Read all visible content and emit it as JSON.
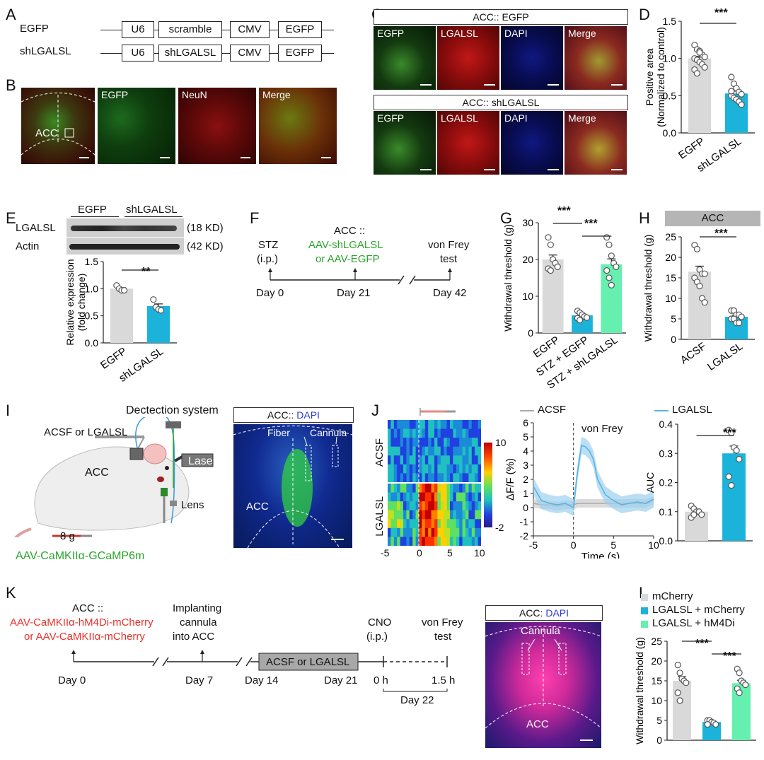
{
  "panels": {
    "A": {
      "letter": "A",
      "rows": [
        {
          "name": "EGFP",
          "parts": [
            "U6",
            "scramble",
            "CMV",
            "EGFP"
          ]
        },
        {
          "name": "shLGALSL",
          "parts": [
            "U6",
            "shLGALSL",
            "CMV",
            "EGFP"
          ]
        }
      ]
    },
    "B": {
      "letter": "B",
      "acc_label": "ACC",
      "image_labels": [
        "EGFP",
        "NeuN",
        "Merge"
      ]
    },
    "C": {
      "letter": "C",
      "rows": [
        {
          "title": "ACC:: EGFP",
          "labels": [
            "EGFP",
            "LGALSL",
            "DAPI",
            "Merge"
          ]
        },
        {
          "title": "ACC:: shLGALSL",
          "labels": [
            "EGFP",
            "LGALSL",
            "DAPI",
            "Merge"
          ]
        }
      ]
    },
    "D": {
      "letter": "D",
      "sig": "***"
    },
    "E": {
      "letter": "E",
      "groups": [
        "EGFP",
        "shLGALSL"
      ],
      "bands": [
        {
          "name": "LGALSL",
          "size": "(18 KD)"
        },
        {
          "name": "Actin",
          "size": "(42 KD)"
        }
      ],
      "sig": "**"
    },
    "F": {
      "letter": "F",
      "events": [
        {
          "top": "STZ",
          "sub": "(i.p.)",
          "day": "Day 0"
        },
        {
          "top": "ACC ::",
          "green1": "AAV-shLGALSL",
          "green2": "or AAV-EGFP",
          "day": "Day 21"
        },
        {
          "top": "von Frey",
          "sub": "test",
          "day": "Day 42"
        }
      ]
    },
    "G": {
      "letter": "G",
      "sig1": "***",
      "sig2": "***"
    },
    "H": {
      "letter": "H",
      "header": "ACC",
      "sig": "***"
    },
    "I": {
      "letter": "I",
      "detection": "Dectection system",
      "injection": "ACSF or LGALSL",
      "acc": "ACC",
      "laser": "Laser",
      "lens": "Lens",
      "weight": "8 g",
      "virus": "AAV-CaMKIIα-GCaMP6m",
      "image_title_prefix": "ACC:: ",
      "image_title_dapi": "DAPI",
      "fiber": "Fiber",
      "cannula": "Cannula",
      "acc_img": "ACC"
    },
    "J": {
      "letter": "J",
      "row_labels": [
        "ACSF",
        "LGALSL"
      ],
      "colorbar_ticks": [
        "10",
        "-2"
      ],
      "heat_xticks": [
        "-5",
        "0",
        "5",
        "10"
      ],
      "legend": [
        "ACSF",
        "LGALSL"
      ],
      "trace_annotation": "von Frey",
      "sig": "***"
    },
    "K": {
      "letter": "K",
      "acc": "ACC ::",
      "virus1": "AAV-CaMKIIα-hM4Di-mCherry",
      "virus2": "or AAV-CaMKIIα-mCherry",
      "implant1": "Implanting",
      "implant2": "cannula",
      "implant3": "into ACC",
      "treatment": "ACSF or LGALSL",
      "cno": "CNO",
      "cno_sub": "(i.p.)",
      "vf1": "von Frey",
      "vf2": "test",
      "days": [
        "Day 0",
        "Day 7",
        "Day 14",
        "Day 21",
        "0 h",
        "1.5 h"
      ],
      "day22": "Day 22",
      "image_title_prefix": "ACC: ",
      "image_title_dapi": "DAPI",
      "cannula": "Cannula",
      "acc_img": "ACC"
    },
    "L": {
      "letter": "L",
      "legend": [
        "mCherry",
        "LGALSL + mCherry",
        "LGALSL + hM4Di"
      ],
      "sig1": "***",
      "sig2": "***"
    }
  },
  "colors": {
    "gray": "#d9d9d9",
    "cyan": "#1bb3d9",
    "mint": "#66f0b0",
    "red": "#e8312a",
    "green": "#2aa52a",
    "blue": "#2a3ad9"
  },
  "chart_data": [
    {
      "id": "D",
      "type": "bar",
      "categories": [
        "EGFP",
        "shLGALSL"
      ],
      "values": [
        1.0,
        0.53
      ],
      "ylabel": "Positive area (Normalized to control)",
      "ylim": [
        0,
        1.5
      ],
      "yticks": [
        "0.0",
        "0.5",
        "1.0",
        "1.5"
      ],
      "points": [
        [
          1.18,
          1.12,
          1.1,
          1.05,
          1.02,
          1.0,
          0.98,
          0.95,
          0.92,
          0.88,
          0.85,
          0.8,
          1.08
        ],
        [
          0.75,
          0.66,
          0.6,
          0.55,
          0.52,
          0.5,
          0.47,
          0.45,
          0.42,
          0.38,
          0.56
        ]
      ]
    },
    {
      "id": "E",
      "type": "bar",
      "categories": [
        "EGFP",
        "shLGALSL"
      ],
      "values": [
        1.0,
        0.68
      ],
      "ylabel": "Relative expression (fold change)",
      "ylim": [
        0,
        1.5
      ],
      "yticks": [
        "0.0",
        "0.5",
        "1.0",
        "1.5"
      ],
      "points": [
        [
          1.06,
          1.0,
          0.97,
          0.97
        ],
        [
          0.8,
          0.66,
          0.62,
          0.6
        ]
      ]
    },
    {
      "id": "G",
      "type": "bar",
      "categories": [
        "EGFP",
        "STZ + EGFP",
        "STZ + shLGALSL"
      ],
      "values": [
        20,
        4.8,
        18.7
      ],
      "ylabel": "Withdrawal threshold (g)",
      "ylim": [
        0,
        30
      ],
      "yticks": [
        "0",
        "10",
        "20",
        "30"
      ],
      "points": [
        [
          26,
          24,
          20,
          19,
          18,
          17.5,
          17
        ],
        [
          6,
          5.5,
          5,
          4.5,
          4.2,
          4,
          3.5
        ],
        [
          26,
          24,
          21,
          19,
          18,
          17,
          15,
          13
        ]
      ]
    },
    {
      "id": "H",
      "type": "bar",
      "categories": [
        "ACSF",
        "LGALSL"
      ],
      "values": [
        16.5,
        5.5
      ],
      "ylabel": "Withdrawal threshold (g)",
      "ylim": [
        0,
        25
      ],
      "yticks": [
        "0",
        "5",
        "10",
        "15",
        "20",
        "25"
      ],
      "points": [
        [
          23,
          22,
          17,
          16,
          16,
          15,
          14,
          13,
          10,
          9
        ],
        [
          7,
          7,
          6,
          6,
          5.5,
          5,
          5,
          4,
          4
        ]
      ]
    },
    {
      "id": "J-trace",
      "type": "line",
      "x": [
        -5,
        -4,
        -3,
        -2,
        -1,
        0,
        0.5,
        1,
        1.5,
        2,
        2.5,
        3,
        4,
        5,
        6,
        7,
        8,
        9,
        10
      ],
      "series": [
        {
          "name": "ACSF",
          "values": [
            0.3,
            0.2,
            0.2,
            0.1,
            0.2,
            0.2,
            0.3,
            0.3,
            0.3,
            0.3,
            0.3,
            0.3,
            0.3,
            0.3,
            0.3,
            0.3,
            0.3,
            0.3,
            0.5
          ]
        },
        {
          "name": "LGALSL",
          "values": [
            1.5,
            0.5,
            0.3,
            0.2,
            0.3,
            0.0,
            2.5,
            4.4,
            4.3,
            4.0,
            3.4,
            2.0,
            0.9,
            0.5,
            0.2,
            0.3,
            0.4,
            0.3,
            0.6
          ]
        }
      ],
      "xlabel": "Time (s)",
      "ylabel": "ΔF/F (%)",
      "xlim": [
        -5,
        10
      ],
      "ylim": [
        -2,
        6
      ],
      "xticks": [
        "-5",
        "0",
        "5",
        "10"
      ],
      "yticks": [
        "-2",
        "-1",
        "0",
        "1",
        "2",
        "3",
        "4",
        "5",
        "6"
      ]
    },
    {
      "id": "J-auc",
      "type": "bar",
      "categories": [
        "ACSF",
        "LGALSL"
      ],
      "values": [
        0.1,
        0.3
      ],
      "ylabel": "AUC",
      "ylim": [
        0,
        0.4
      ],
      "yticks": [
        "0.0",
        "0.1",
        "0.2",
        "0.3",
        "0.4"
      ],
      "points": [
        [
          0.12,
          0.11,
          0.1,
          0.1,
          0.09,
          0.08,
          0.09
        ],
        [
          0.38,
          0.37,
          0.32,
          0.31,
          0.28,
          0.22,
          0.19
        ]
      ]
    },
    {
      "id": "L",
      "type": "bar",
      "categories": [
        "mCherry",
        "LGALSL + mCherry",
        "LGALSL + hM4Di"
      ],
      "values": [
        15,
        4.6,
        14.4
      ],
      "ylabel": "Withdrawal threshold (g)",
      "ylim": [
        0,
        25
      ],
      "yticks": [
        "0",
        "5",
        "10",
        "15",
        "20",
        "25"
      ],
      "points": [
        [
          19,
          17,
          15.5,
          15,
          14.5,
          12,
          10
        ],
        [
          5,
          5,
          4.6,
          4.4,
          4,
          4
        ],
        [
          18,
          17,
          15,
          14.5,
          14,
          13,
          12
        ]
      ]
    }
  ]
}
